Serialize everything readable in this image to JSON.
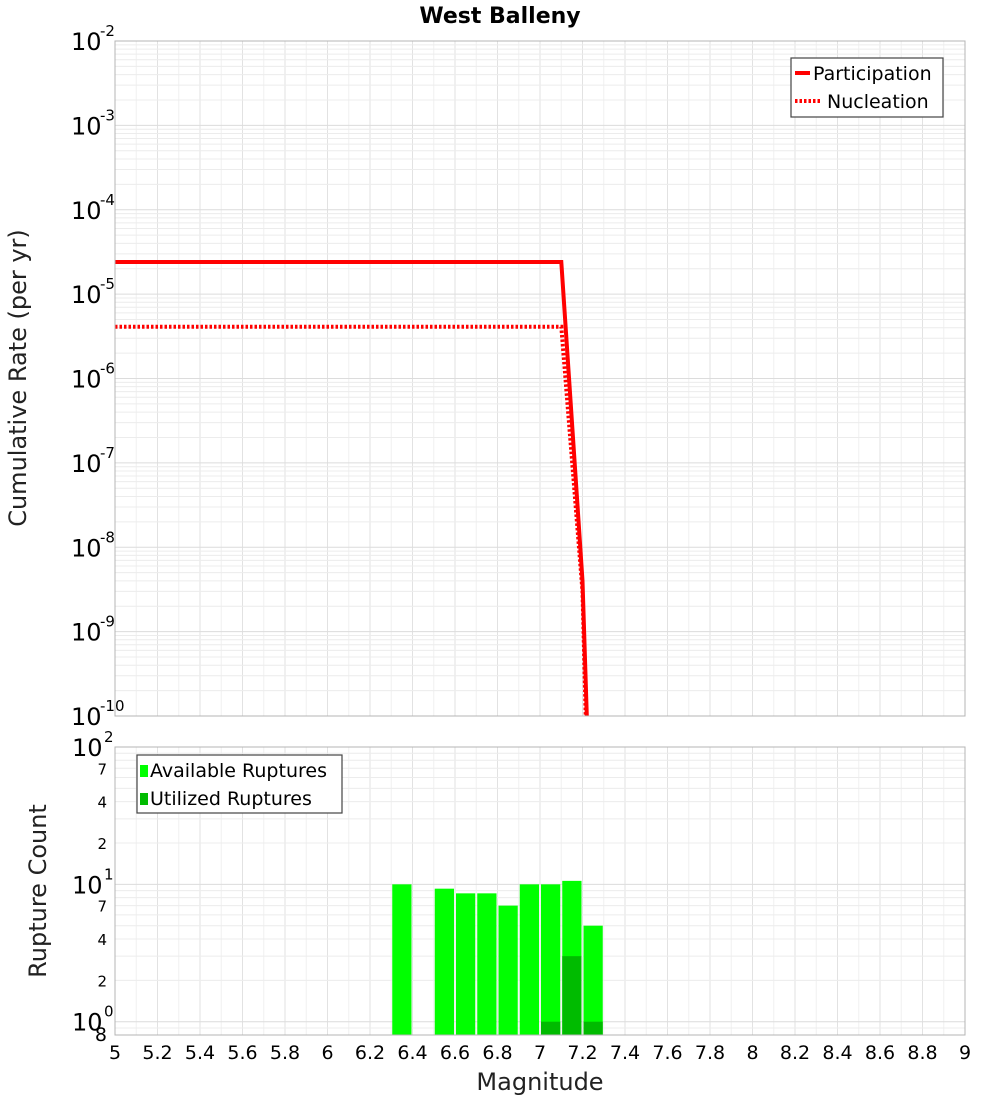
{
  "chart_data": [
    {
      "type": "line",
      "title": "West Balleny",
      "xlabel": "Magnitude",
      "ylabel": "Cumulative Rate (per yr)",
      "yscale": "log",
      "xlim": [
        5,
        9
      ],
      "ylim": [
        1e-10,
        0.01
      ],
      "y_ticks": [
        {
          "base": "10",
          "exp": "-10",
          "value": 1e-10
        },
        {
          "base": "10",
          "exp": "-9",
          "value": 1e-09
        },
        {
          "base": "10",
          "exp": "-8",
          "value": 1e-08
        },
        {
          "base": "10",
          "exp": "-7",
          "value": 1e-07
        },
        {
          "base": "10",
          "exp": "-6",
          "value": 1e-06
        },
        {
          "base": "10",
          "exp": "-5",
          "value": 1e-05
        },
        {
          "base": "10",
          "exp": "-4",
          "value": 0.0001
        },
        {
          "base": "10",
          "exp": "-3",
          "value": 0.001
        },
        {
          "base": "10",
          "exp": "-2",
          "value": 0.01
        }
      ],
      "series": [
        {
          "name": "Participation",
          "color": "#ff0000",
          "style": "solid",
          "x": [
            5.0,
            7.1,
            7.2,
            7.22
          ],
          "y": [
            2.4e-05,
            2.4e-05,
            4e-09,
            1e-10
          ]
        },
        {
          "name": "Nucleation",
          "color": "#ff0000",
          "style": "dotted",
          "x": [
            5.0,
            7.1,
            7.2,
            7.215
          ],
          "y": [
            4.1e-06,
            4.1e-06,
            3e-09,
            1e-10
          ]
        }
      ],
      "legend": {
        "position": "top-right",
        "entries": [
          "Participation",
          "Nucleation"
        ]
      }
    },
    {
      "type": "bar",
      "xlabel": "Magnitude",
      "ylabel": "Rupture Count",
      "yscale": "log",
      "xlim": [
        5,
        9
      ],
      "ylim": [
        0.8,
        100
      ],
      "x_ticks": [
        "5",
        "5.2",
        "5.4",
        "5.6",
        "5.8",
        "6",
        "6.2",
        "6.4",
        "6.6",
        "6.8",
        "7",
        "7.2",
        "7.4",
        "7.6",
        "7.8",
        "8",
        "8.2",
        "8.4",
        "8.6",
        "8.8",
        "9"
      ],
      "y_major_ticks": [
        {
          "base": "10",
          "exp": "0",
          "value": 1
        },
        {
          "base": "10",
          "exp": "1",
          "value": 10
        },
        {
          "base": "10",
          "exp": "2",
          "value": 100
        }
      ],
      "y_minor_ticks": [
        {
          "label": "8",
          "value": 0.8
        },
        {
          "label": "2",
          "value": 2
        },
        {
          "label": "4",
          "value": 4
        },
        {
          "label": "7",
          "value": 7
        },
        {
          "label": "2",
          "value": 20
        },
        {
          "label": "4",
          "value": 40
        },
        {
          "label": "7",
          "value": 70
        }
      ],
      "bin_width": 0.1,
      "series": [
        {
          "name": "Available Ruptures",
          "color": "#00ff00",
          "x": [
            6.35,
            6.55,
            6.65,
            6.75,
            6.85,
            6.95,
            7.05,
            7.15,
            7.25
          ],
          "values": [
            10,
            9.3,
            8.6,
            8.6,
            7.0,
            10,
            10,
            10.6,
            5.0
          ]
        },
        {
          "name": "Utilized Ruptures",
          "color": "#00bb00",
          "x": [
            7.05,
            7.15,
            7.25
          ],
          "values": [
            1,
            3,
            1
          ]
        }
      ],
      "legend": {
        "position": "top-left",
        "entries": [
          "Available Ruptures",
          "Utilized Ruptures"
        ]
      }
    }
  ]
}
